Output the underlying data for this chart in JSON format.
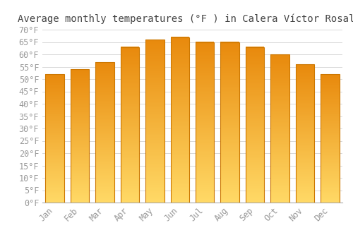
{
  "title": "Average monthly temperatures (°F ) in Calera Víctor Rosales",
  "months": [
    "Jan",
    "Feb",
    "Mar",
    "Apr",
    "May",
    "Jun",
    "Jul",
    "Aug",
    "Sep",
    "Oct",
    "Nov",
    "Dec"
  ],
  "values": [
    52,
    54,
    57,
    63,
    66,
    67,
    65,
    65,
    63,
    60,
    56,
    52
  ],
  "bar_color_bottom": "#FFD966",
  "bar_color_top": "#E8890C",
  "bar_edge_color": "#CC7700",
  "ylim": [
    0,
    70
  ],
  "ytick_step": 5,
  "background_color": "#FFFFFF",
  "grid_color": "#D8D8D8",
  "title_fontsize": 10,
  "tick_fontsize": 8.5,
  "bar_width": 0.75,
  "figsize": [
    5.0,
    3.5
  ],
  "dpi": 100
}
